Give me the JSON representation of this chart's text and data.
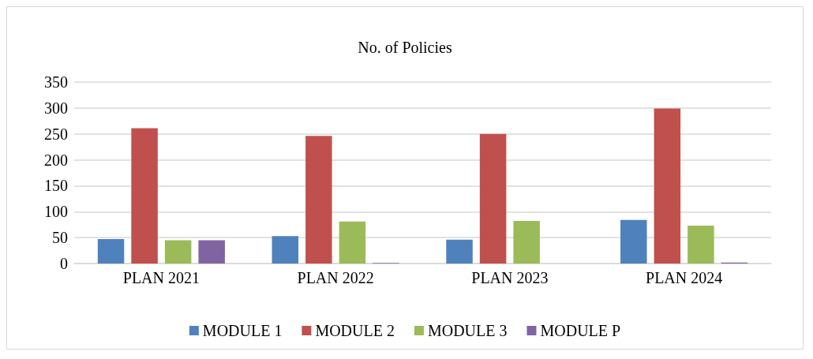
{
  "chart_data": {
    "type": "bar",
    "title": "No. of Policies",
    "categories": [
      "PLAN 2021",
      "PLAN 2022",
      "PLAN 2023",
      "PLAN 2024"
    ],
    "series": [
      {
        "name": "MODULE 1",
        "color": "#4f81bd",
        "values": [
          47,
          53,
          46,
          84
        ]
      },
      {
        "name": "MODULE 2",
        "color": "#c0504d",
        "values": [
          261,
          246,
          250,
          299
        ]
      },
      {
        "name": "MODULE 3",
        "color": "#9bbb59",
        "values": [
          45,
          81,
          82,
          73
        ]
      },
      {
        "name": "MODULE P",
        "color": "#8064a2",
        "values": [
          45,
          1,
          0,
          2
        ]
      }
    ],
    "ylim": [
      0,
      350
    ],
    "yticks": [
      0,
      50,
      100,
      150,
      200,
      250,
      300,
      350
    ],
    "grid": "y",
    "legend": "bottom"
  }
}
